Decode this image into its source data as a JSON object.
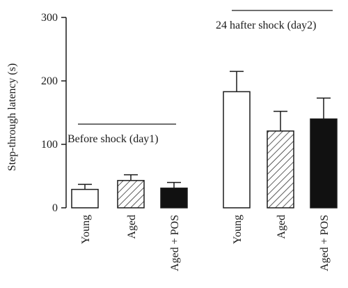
{
  "chart_data": {
    "type": "bar",
    "ylabel": "Step-through latency (s)",
    "ylim": [
      0,
      300
    ],
    "yticks": [
      0,
      100,
      200,
      300
    ],
    "colors": {
      "outline": "#1a1a1a",
      "white": "#ffffff",
      "black": "#111111"
    },
    "groups": [
      {
        "label": "Before shock (day1)",
        "bars": [
          {
            "category": "Young",
            "value": 29,
            "error": 8,
            "fill": "white"
          },
          {
            "category": "Aged",
            "value": 43,
            "error": 9,
            "fill": "hatched"
          },
          {
            "category": "Aged + POS",
            "value": 31,
            "error": 9,
            "fill": "black"
          }
        ]
      },
      {
        "label": "24 hafter shock (day2)",
        "bars": [
          {
            "category": "Young",
            "value": 183,
            "error": 32,
            "fill": "white"
          },
          {
            "category": "Aged",
            "value": 121,
            "error": 31,
            "fill": "hatched"
          },
          {
            "category": "Aged + POS",
            "value": 140,
            "error": 33,
            "fill": "black"
          }
        ]
      }
    ]
  }
}
